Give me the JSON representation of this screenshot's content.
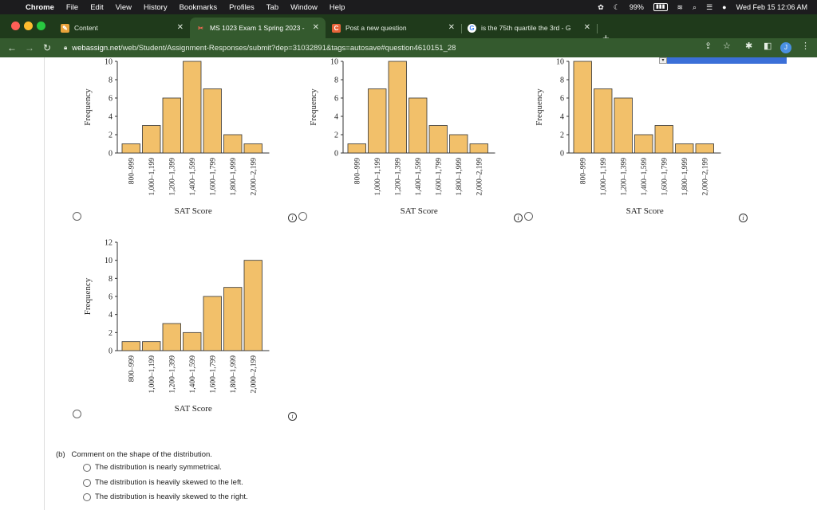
{
  "menubar": {
    "app": "Chrome",
    "items": [
      "File",
      "Edit",
      "View",
      "History",
      "Bookmarks",
      "Profiles",
      "Tab",
      "Window",
      "Help"
    ],
    "battery": "99%",
    "clock": "Wed Feb 15  12:06 AM"
  },
  "tabs": [
    {
      "title": "Content",
      "icon": "pencil-icon"
    },
    {
      "title": "MS 1023 Exam 1 Spring 2023 -",
      "icon": "webassign-icon"
    },
    {
      "title": "Post a new question",
      "icon": "chegg-icon"
    },
    {
      "title": "is the 75th quartile the 3rd - G",
      "icon": "google-icon"
    }
  ],
  "url": {
    "host": "webassign.net",
    "path": "/web/Student/Assignment-Responses/submit?dep=31032891&tags=autosave#question4610151_28"
  },
  "chart_data": [
    {
      "type": "bar",
      "categories": [
        "800–999",
        "1,000–1,199",
        "1,200–1,399",
        "1,400–1,599",
        "1,600–1,799",
        "1,800–1,999",
        "2,000–2,199"
      ],
      "values": [
        1,
        3,
        6,
        10,
        7,
        2,
        1
      ],
      "ylabel": "Frequency",
      "xlabel": "SAT Score",
      "ylim": [
        0,
        10
      ],
      "yticks": [
        0,
        2,
        4,
        6,
        8,
        10
      ]
    },
    {
      "type": "bar",
      "categories": [
        "800–999",
        "1,000–1,199",
        "1,200–1,399",
        "1,400–1,599",
        "1,600–1,799",
        "1,800–1,999",
        "2,000–2,199"
      ],
      "values": [
        1,
        7,
        10,
        6,
        3,
        2,
        1
      ],
      "ylabel": "Frequency",
      "xlabel": "SAT Score",
      "ylim": [
        0,
        10
      ],
      "yticks": [
        0,
        2,
        4,
        6,
        8,
        10
      ]
    },
    {
      "type": "bar",
      "categories": [
        "800–999",
        "1,000–1,199",
        "1,200–1,399",
        "1,400–1,599",
        "1,600–1,799",
        "1,800–1,999",
        "2,000–2,199"
      ],
      "values": [
        10,
        7,
        6,
        2,
        3,
        1,
        1
      ],
      "ylabel": "Frequency",
      "xlabel": "SAT Score",
      "ylim": [
        0,
        10
      ],
      "yticks": [
        0,
        2,
        4,
        6,
        8,
        10
      ]
    },
    {
      "type": "bar",
      "categories": [
        "800–999",
        "1,000–1,199",
        "1,200–1,399",
        "1,400–1,599",
        "1,600–1,799",
        "1,800–1,999",
        "2,000–2,199"
      ],
      "values": [
        1,
        1,
        3,
        2,
        6,
        7,
        10
      ],
      "ylabel": "Frequency",
      "xlabel": "SAT Score",
      "ylim": [
        0,
        12
      ],
      "yticks": [
        0,
        2,
        4,
        6,
        8,
        10,
        12
      ]
    }
  ],
  "partb": {
    "label": "(b)",
    "question": "Comment on the shape of the distribution.",
    "options": [
      "The distribution is nearly symmetrical.",
      "The distribution is heavily skewed to the left.",
      "The distribution is heavily skewed to the right."
    ]
  },
  "colors": {
    "bar": "#f2c06a",
    "barStroke": "#333333",
    "tabbar": "#1f3a1b",
    "addrbar": "#345a2e"
  }
}
